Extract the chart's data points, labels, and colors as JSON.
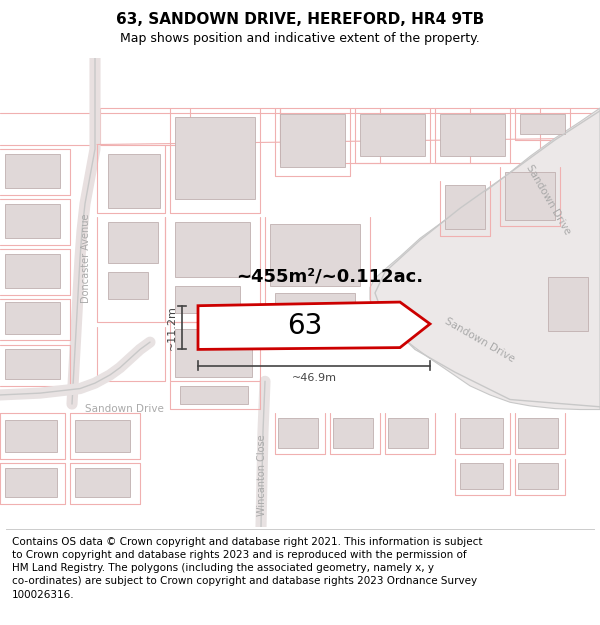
{
  "title": "63, SANDOWN DRIVE, HEREFORD, HR4 9TB",
  "subtitle": "Map shows position and indicative extent of the property.",
  "footer_text": "Contains OS data © Crown copyright and database right 2021. This information is subject\nto Crown copyright and database rights 2023 and is reproduced with the permission of\nHM Land Registry. The polygons (including the associated geometry, namely x, y\nco-ordinates) are subject to Crown copyright and database rights 2023 Ordnance Survey\n100026316.",
  "area_label": "~455m²/~0.112ac.",
  "property_number": "63",
  "width_label": "~46.9m",
  "height_label": "~11.2m",
  "map_bg": "#ffffff",
  "road_line_color": "#f0b0b0",
  "road_fill_color": "#f5e8e8",
  "street_road_color": "#c8c8c8",
  "property_outline_color": "#cc0000",
  "property_fill": "#ffffff",
  "building_color": "#e0d8d8",
  "building_outline": "#c0b0b0",
  "street_label_color": "#aaaaaa",
  "dim_color": "#444444",
  "title_fontsize": 11,
  "subtitle_fontsize": 9,
  "footer_fontsize": 7.5
}
